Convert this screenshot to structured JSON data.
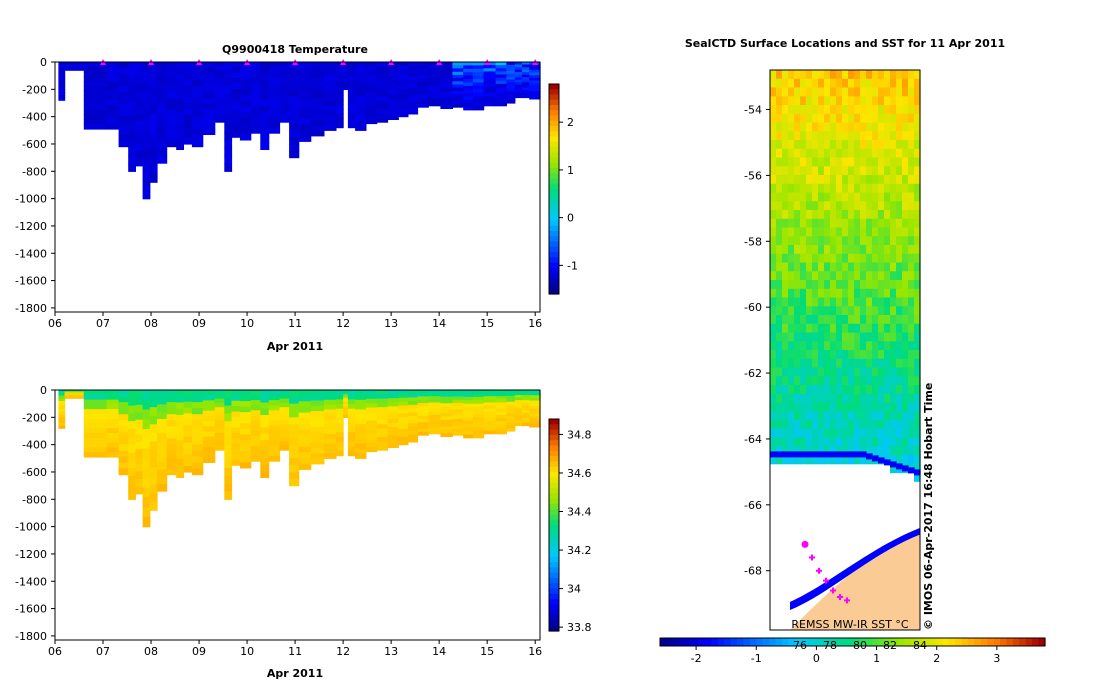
{
  "chart_data": [
    {
      "type": "heatmap",
      "title": "Q9900418  Temperature",
      "xlabel": "Apr 2011",
      "ylabel": "",
      "x_ticks": [
        "06",
        "07",
        "08",
        "09",
        "10",
        "11",
        "12",
        "13",
        "14",
        "15",
        "16"
      ],
      "xlim": [
        6.0,
        16.1
      ],
      "y_ticks": [
        0,
        -200,
        -400,
        -600,
        -800,
        -1000,
        -1200,
        -1400,
        -1600,
        -1800
      ],
      "ylim": [
        -1830,
        0
      ],
      "colorbar": {
        "ticks": [
          2,
          1,
          0,
          -1
        ],
        "range": [
          -1.6,
          2.8
        ]
      },
      "profile_x": [
        6.15,
        6.25,
        6.95,
        7.2,
        7.45,
        7.6,
        7.75,
        7.9,
        8.05,
        8.2,
        8.45,
        8.6,
        8.75,
        8.95,
        9.2,
        9.45,
        9.6,
        9.75,
        9.95,
        10.2,
        10.35,
        10.55,
        10.8,
        10.95,
        11.2,
        11.45,
        11.75,
        11.95,
        12.05,
        12.15,
        12.35,
        12.6,
        12.8,
        13.05,
        13.25,
        13.45,
        13.65,
        13.9,
        14.15,
        14.4,
        14.6,
        14.8,
        15.05,
        15.3,
        15.5,
        15.65,
        15.8,
        15.95
      ],
      "profile_depth": [
        -280,
        -60,
        -490,
        -490,
        -620,
        -800,
        -760,
        -1000,
        -880,
        -740,
        -620,
        -640,
        -600,
        -620,
        -530,
        -440,
        -800,
        -550,
        -570,
        -520,
        -640,
        -520,
        -440,
        -700,
        -580,
        -540,
        -500,
        -480,
        -200,
        -480,
        -500,
        -450,
        -440,
        -420,
        -400,
        -380,
        -330,
        -320,
        -340,
        -330,
        -350,
        -350,
        -320,
        -320,
        -300,
        -260,
        -260,
        -270
      ],
      "surface_markers_x": [
        7,
        8,
        9,
        10,
        11,
        12,
        13,
        14,
        15,
        16
      ],
      "marker_color": "#ff00ff"
    },
    {
      "type": "heatmap",
      "title": "",
      "xlabel": "Apr 2011",
      "ylabel": "",
      "x_ticks": [
        "06",
        "07",
        "08",
        "09",
        "10",
        "11",
        "12",
        "13",
        "14",
        "15",
        "16"
      ],
      "xlim": [
        6.0,
        16.1
      ],
      "y_ticks": [
        0,
        -200,
        -400,
        -600,
        -800,
        -1000,
        -1200,
        -1400,
        -1600,
        -1800
      ],
      "ylim": [
        -1830,
        0
      ],
      "colorbar": {
        "ticks": [
          34.8,
          34.6,
          34.4,
          34.2,
          34.0,
          33.8
        ],
        "tick_labels": [
          "34.8",
          "34.6",
          "34.4",
          "34.2",
          "34",
          "33.8"
        ],
        "range": [
          33.78,
          34.88
        ]
      }
    },
    {
      "type": "heatmap",
      "title": "SealCTD Surface Locations and SST for 11 Apr 2011",
      "y_ticks": [
        -54,
        -56,
        -58,
        -60,
        -62,
        -64,
        -66,
        -68
      ],
      "ylim": [
        -69.8,
        -52.8
      ],
      "colorbar": {
        "ticks": [
          -2,
          -1,
          0,
          1,
          2,
          3
        ],
        "range": [
          -2.6,
          3.8
        ],
        "inset_ticks": [
          "76",
          "78",
          "80",
          "82",
          "84"
        ]
      },
      "annotations": {
        "source": "REMSS MW-IR SST °C",
        "credit": "© IMOS 06-Apr-2017 16:48 Hobart Time"
      },
      "ice_color": "#0000ff",
      "land_color": "#fbcb95",
      "seal_positions": [
        {
          "lat": -67.2,
          "label": "dot"
        },
        {
          "lat": -67.6,
          "label": "star"
        },
        {
          "lat": -68.0,
          "label": "star"
        },
        {
          "lat": -68.3,
          "label": "star"
        },
        {
          "lat": -68.6,
          "label": "star"
        },
        {
          "lat": -68.8,
          "label": "star"
        },
        {
          "lat": -68.9,
          "label": "star"
        }
      ]
    }
  ]
}
